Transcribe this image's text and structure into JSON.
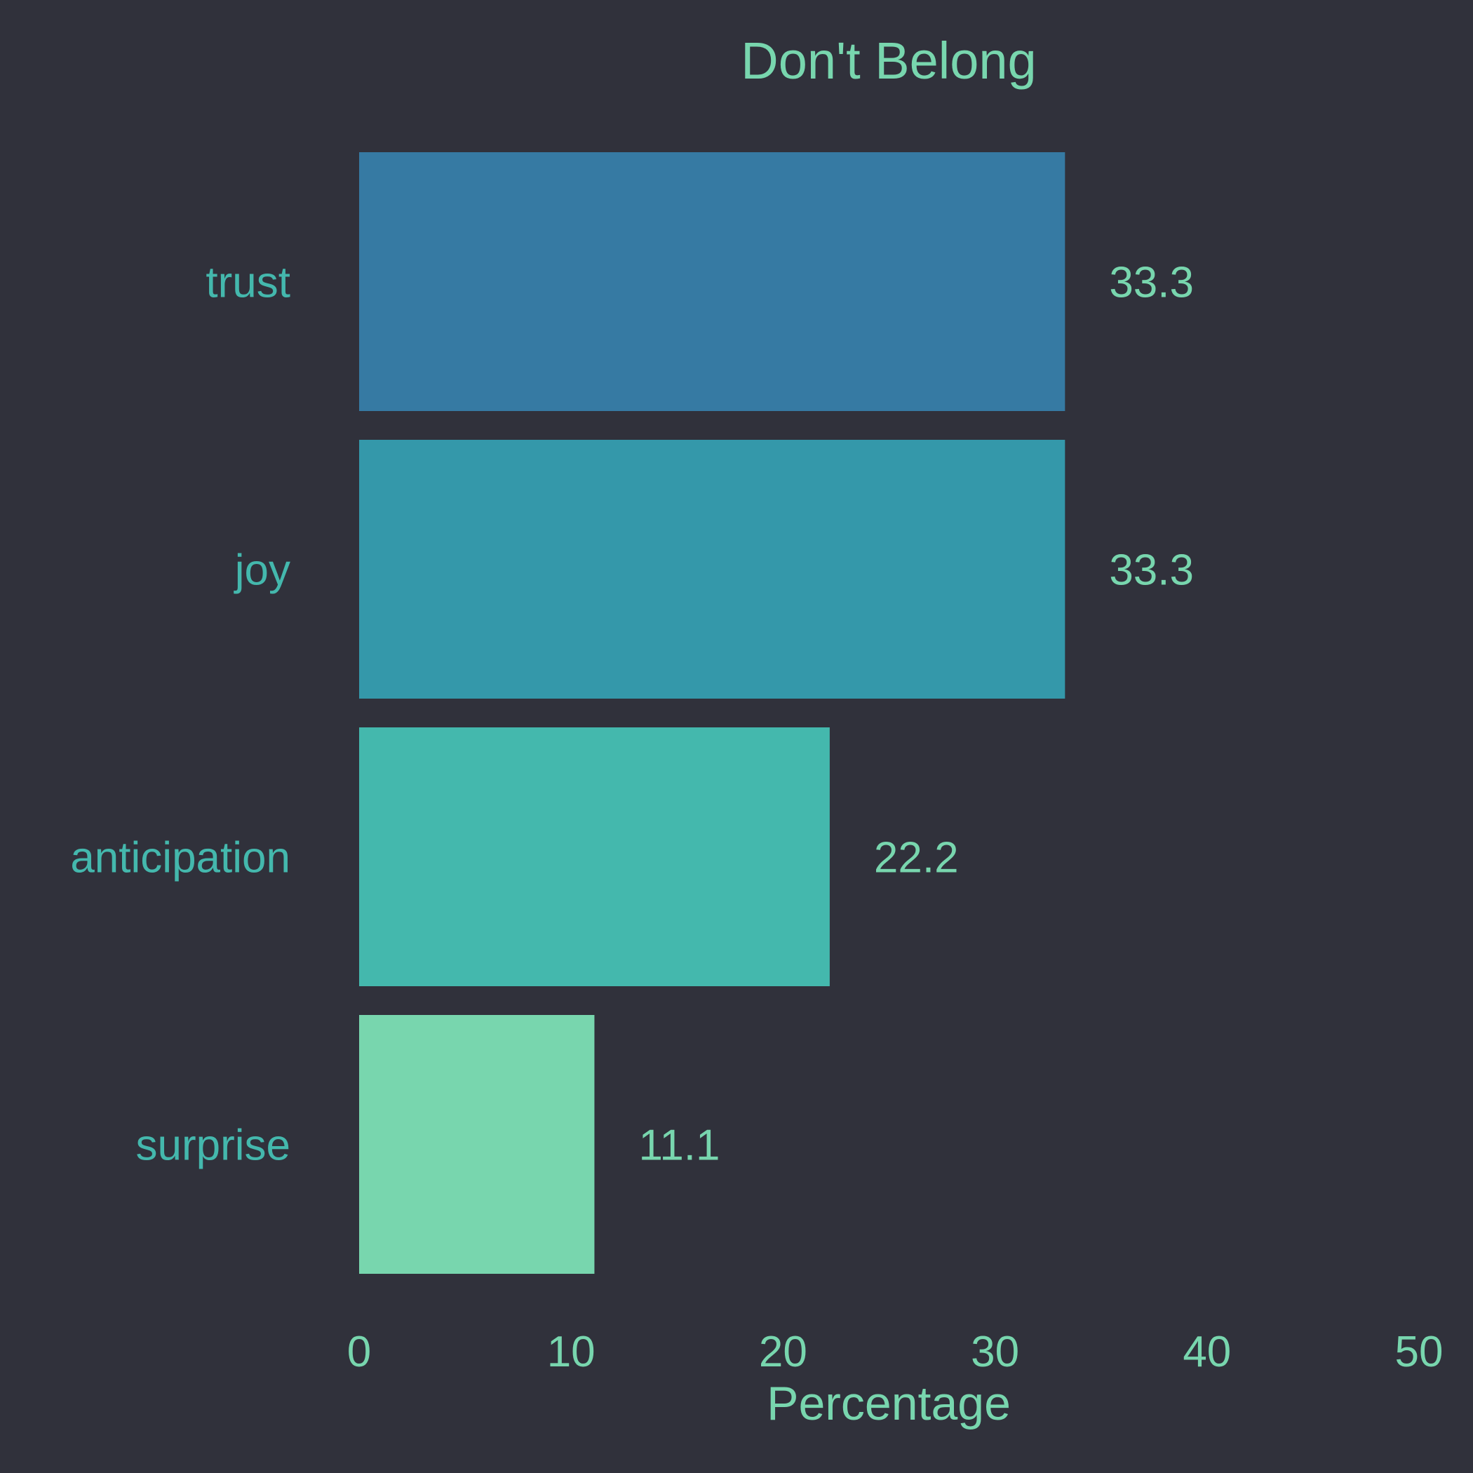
{
  "chart_data": {
    "type": "bar",
    "orientation": "horizontal",
    "title": "Don't Belong",
    "xlabel": "Percentage",
    "ylabel": "",
    "categories": [
      "trust",
      "joy",
      "anticipation",
      "surprise"
    ],
    "values": [
      33.3,
      33.3,
      22.2,
      11.1
    ],
    "value_labels": [
      "33.3",
      "33.3",
      "22.2",
      "11.1"
    ],
    "xlim": [
      0,
      50
    ],
    "xticks": [
      0,
      10,
      20,
      30,
      40,
      50
    ],
    "xtick_labels": [
      "0",
      "10",
      "20",
      "30",
      "40",
      "50"
    ],
    "grid": false,
    "legend": "none",
    "bar_colors": [
      "#367aa3",
      "#3498aa",
      "#44b8ad",
      "#78d6ae"
    ],
    "colors": {
      "background": "#30313b",
      "text": "#78d6ae",
      "category_text": "#44b8ad"
    }
  }
}
